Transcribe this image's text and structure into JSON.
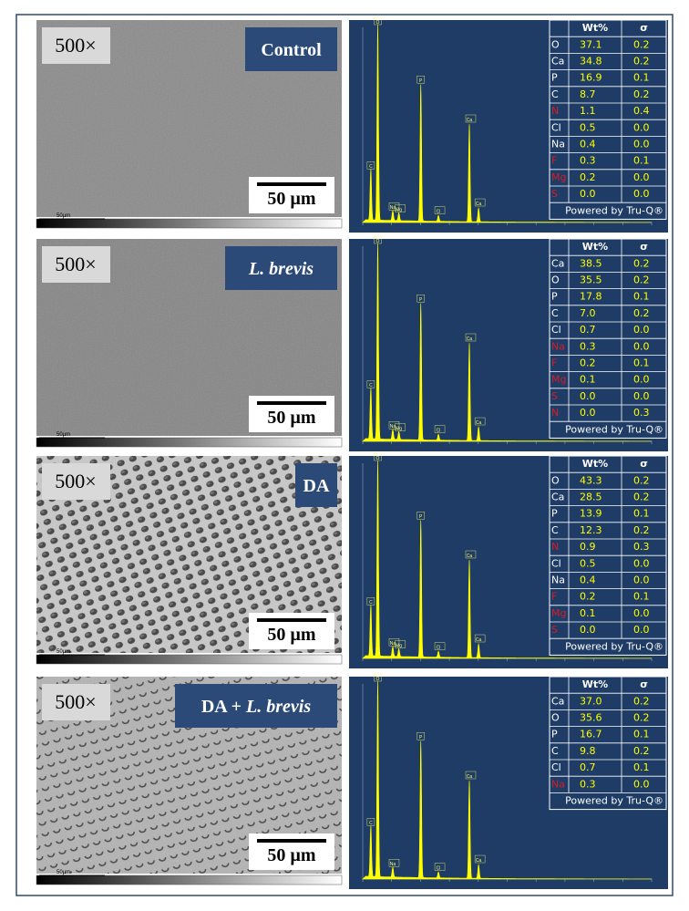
{
  "panels": [
    {
      "magnification": "500×",
      "sample": [
        {
          "text": "Control",
          "italic": false
        }
      ],
      "scale_bar": "50 µm",
      "detector_scale": "50µm",
      "eds": {
        "header": {
          "wt": "Wt%",
          "sigma": "σ"
        },
        "footer": "Powered by Tru-Q®",
        "peaks": [
          "C",
          "O",
          "Na",
          "Mg",
          "P",
          "Cl",
          "Ca",
          "Ca"
        ],
        "rows": [
          {
            "element": "O",
            "wt": "37.1",
            "sigma": "0.2",
            "color": "#ffffff"
          },
          {
            "element": "Ca",
            "wt": "34.8",
            "sigma": "0.2",
            "color": "#ffffff"
          },
          {
            "element": "P",
            "wt": "16.9",
            "sigma": "0.1",
            "color": "#ffffff"
          },
          {
            "element": "C",
            "wt": "8.7",
            "sigma": "0.2",
            "color": "#ffffff"
          },
          {
            "element": "N",
            "wt": "1.1",
            "sigma": "0.4",
            "color": "#d0202a"
          },
          {
            "element": "Cl",
            "wt": "0.5",
            "sigma": "0.0",
            "color": "#ffffff"
          },
          {
            "element": "Na",
            "wt": "0.4",
            "sigma": "0.0",
            "color": "#ffffff"
          },
          {
            "element": "F",
            "wt": "0.3",
            "sigma": "0.1",
            "color": "#d0202a"
          },
          {
            "element": "Mg",
            "wt": "0.2",
            "sigma": "0.0",
            "color": "#d0202a"
          },
          {
            "element": "S",
            "wt": "0.0",
            "sigma": "0.0",
            "color": "#d0202a"
          }
        ]
      }
    },
    {
      "magnification": "500×",
      "sample": [
        {
          "text": "L. brevis",
          "italic": true
        }
      ],
      "scale_bar": "50 µm",
      "detector_scale": "50µm",
      "eds": {
        "header": {
          "wt": "Wt%",
          "sigma": "σ"
        },
        "footer": "Powered by Tru-Q®",
        "peaks": [
          "C",
          "O",
          "Na",
          "Mg",
          "P",
          "Cl",
          "Ca",
          "Ca"
        ],
        "rows": [
          {
            "element": "Ca",
            "wt": "38.5",
            "sigma": "0.2",
            "color": "#ffffff"
          },
          {
            "element": "O",
            "wt": "35.5",
            "sigma": "0.2",
            "color": "#ffffff"
          },
          {
            "element": "P",
            "wt": "17.8",
            "sigma": "0.1",
            "color": "#ffffff"
          },
          {
            "element": "C",
            "wt": "7.0",
            "sigma": "0.2",
            "color": "#ffffff"
          },
          {
            "element": "Cl",
            "wt": "0.7",
            "sigma": "0.0",
            "color": "#ffffff"
          },
          {
            "element": "Na",
            "wt": "0.3",
            "sigma": "0.0",
            "color": "#d0202a"
          },
          {
            "element": "F",
            "wt": "0.2",
            "sigma": "0.1",
            "color": "#d0202a"
          },
          {
            "element": "Mg",
            "wt": "0.1",
            "sigma": "0.0",
            "color": "#d0202a"
          },
          {
            "element": "S",
            "wt": "0.0",
            "sigma": "0.0",
            "color": "#d0202a"
          },
          {
            "element": "N",
            "wt": "0.0",
            "sigma": "0.3",
            "color": "#d0202a"
          }
        ]
      }
    },
    {
      "magnification": "500×",
      "sample": [
        {
          "text": "DA",
          "italic": false
        }
      ],
      "scale_bar": "50 µm",
      "detector_scale": "50µm",
      "eds": {
        "header": {
          "wt": "Wt%",
          "sigma": "σ"
        },
        "footer": "Powered by Tru-Q®",
        "peaks": [
          "C",
          "O",
          "Na",
          "Mg",
          "P",
          "Cl",
          "Ca",
          "Ca"
        ],
        "rows": [
          {
            "element": "O",
            "wt": "43.3",
            "sigma": "0.2",
            "color": "#ffffff"
          },
          {
            "element": "Ca",
            "wt": "28.5",
            "sigma": "0.2",
            "color": "#ffffff"
          },
          {
            "element": "P",
            "wt": "13.9",
            "sigma": "0.1",
            "color": "#ffffff"
          },
          {
            "element": "C",
            "wt": "12.3",
            "sigma": "0.2",
            "color": "#ffffff"
          },
          {
            "element": "N",
            "wt": "0.9",
            "sigma": "0.3",
            "color": "#d0202a"
          },
          {
            "element": "Cl",
            "wt": "0.5",
            "sigma": "0.0",
            "color": "#ffffff"
          },
          {
            "element": "Na",
            "wt": "0.4",
            "sigma": "0.0",
            "color": "#ffffff"
          },
          {
            "element": "F",
            "wt": "0.2",
            "sigma": "0.1",
            "color": "#d0202a"
          },
          {
            "element": "Mg",
            "wt": "0.1",
            "sigma": "0.0",
            "color": "#d0202a"
          },
          {
            "element": "S",
            "wt": "0.0",
            "sigma": "0.0",
            "color": "#d0202a"
          }
        ]
      }
    },
    {
      "magnification": "500×",
      "sample": [
        {
          "text": "DA + ",
          "italic": false
        },
        {
          "text": "L. brevis",
          "italic": true
        }
      ],
      "scale_bar": "50 µm",
      "detector_scale": "50µm",
      "eds": {
        "header": {
          "wt": "Wt%",
          "sigma": "σ"
        },
        "footer": "Powered by Tru-Q®",
        "peaks": [
          "C",
          "O",
          "Na",
          "P",
          "Cl",
          "Ca",
          "Ca"
        ],
        "rows": [
          {
            "element": "Ca",
            "wt": "37.0",
            "sigma": "0.2",
            "color": "#ffffff"
          },
          {
            "element": "O",
            "wt": "35.6",
            "sigma": "0.2",
            "color": "#ffffff"
          },
          {
            "element": "P",
            "wt": "16.7",
            "sigma": "0.1",
            "color": "#ffffff"
          },
          {
            "element": "C",
            "wt": "9.8",
            "sigma": "0.2",
            "color": "#ffffff"
          },
          {
            "element": "Cl",
            "wt": "0.7",
            "sigma": "0.1",
            "color": "#ffffff"
          },
          {
            "element": "Na",
            "wt": "0.3",
            "sigma": "0.0",
            "color": "#d0202a"
          }
        ]
      }
    }
  ]
}
